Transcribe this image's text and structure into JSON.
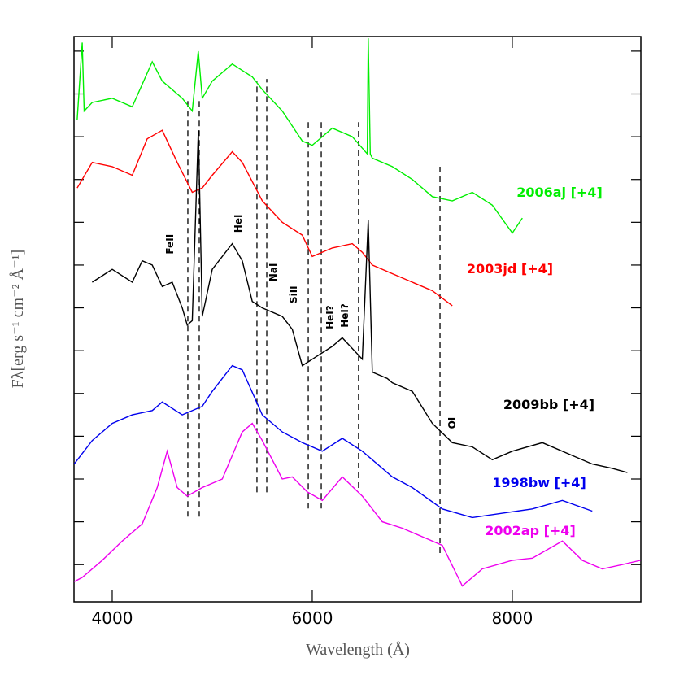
{
  "chart_data": {
    "type": "line",
    "xlabel": "Wavelength (Å)",
    "ylabel": "Fλ[erg s⁻¹ cm⁻² Å⁻¹]",
    "xlim": [
      3618,
      9285
    ],
    "ylim": [
      0.13,
      13.34
    ],
    "xticks": [
      4000,
      6000,
      8000
    ],
    "yticks": [
      1,
      2,
      3,
      4,
      5,
      6,
      7,
      8,
      9,
      10,
      11,
      12,
      13
    ],
    "series": [
      {
        "name": "2006aj [+4]",
        "color": "#00ee00",
        "x": [
          3650,
          3700,
          3720,
          3800,
          4000,
          4200,
          4400,
          4500,
          4700,
          4800,
          4860,
          4900,
          5000,
          5200,
          5400,
          5500,
          5700,
          5900,
          6000,
          6200,
          6400,
          6550,
          6560,
          6580,
          6600,
          6800,
          7000,
          7200,
          7400,
          7600,
          7800,
          8000,
          8100
        ],
        "values": [
          11.4,
          13.2,
          11.6,
          11.8,
          11.9,
          11.7,
          12.75,
          12.3,
          11.9,
          11.6,
          13.0,
          11.9,
          12.3,
          12.7,
          12.4,
          12.1,
          11.6,
          10.9,
          10.8,
          11.2,
          11.0,
          10.6,
          13.3,
          10.6,
          10.5,
          10.3,
          10.0,
          9.6,
          9.5,
          9.7,
          9.4,
          8.75,
          9.1
        ]
      },
      {
        "name": "2003jd [+4]",
        "color": "#ff0000",
        "x": [
          3650,
          3800,
          4000,
          4200,
          4350,
          4500,
          4650,
          4800,
          4900,
          5000,
          5200,
          5300,
          5500,
          5700,
          5900,
          6000,
          6200,
          6400,
          6500,
          6600,
          6800,
          7000,
          7200,
          7400
        ],
        "values": [
          9.8,
          10.4,
          10.3,
          10.1,
          10.95,
          11.15,
          10.4,
          9.7,
          9.8,
          10.1,
          10.65,
          10.4,
          9.5,
          9.0,
          8.7,
          8.2,
          8.4,
          8.5,
          8.3,
          8.0,
          7.8,
          7.6,
          7.4,
          7.05
        ]
      },
      {
        "name": "2009bb [+4]",
        "color": "#000000",
        "x": [
          3800,
          4000,
          4200,
          4300,
          4400,
          4500,
          4600,
          4700,
          4750,
          4800,
          4861,
          4900,
          5000,
          5200,
          5300,
          5400,
          5500,
          5700,
          5800,
          5900,
          6000,
          6200,
          6300,
          6500,
          6560,
          6600,
          6750,
          6800,
          7000,
          7200,
          7400,
          7600,
          7800,
          8000,
          8300,
          8600,
          8800,
          9000,
          9150
        ],
        "values": [
          7.6,
          7.9,
          7.6,
          8.1,
          8.0,
          7.5,
          7.6,
          7.0,
          6.6,
          6.7,
          11.15,
          6.8,
          7.9,
          8.5,
          8.1,
          7.15,
          7.0,
          6.8,
          6.5,
          5.65,
          5.8,
          6.1,
          6.3,
          5.8,
          9.05,
          5.5,
          5.35,
          5.25,
          5.05,
          4.3,
          3.85,
          3.75,
          3.45,
          3.65,
          3.85,
          3.55,
          3.35,
          3.25,
          3.15
        ]
      },
      {
        "name": "1998bw [+4]",
        "color": "#0000ee",
        "x": [
          3620,
          3800,
          4000,
          4200,
          4400,
          4500,
          4700,
          4900,
          5000,
          5200,
          5300,
          5500,
          5700,
          5900,
          6100,
          6300,
          6500,
          6800,
          7000,
          7300,
          7600,
          7900,
          8200,
          8500,
          8800
        ],
        "values": [
          3.35,
          3.9,
          4.3,
          4.5,
          4.6,
          4.8,
          4.5,
          4.7,
          5.05,
          5.65,
          5.55,
          4.5,
          4.1,
          3.85,
          3.65,
          3.95,
          3.65,
          3.05,
          2.8,
          2.3,
          2.1,
          2.2,
          2.3,
          2.5,
          2.25
        ]
      },
      {
        "name": "2002ap [+4]",
        "color": "#ee00ee",
        "x": [
          3620,
          3700,
          3900,
          4100,
          4300,
          4450,
          4550,
          4650,
          4750,
          4900,
          5100,
          5300,
          5400,
          5500,
          5700,
          5800,
          5950,
          6100,
          6300,
          6500,
          6700,
          6900,
          7100,
          7300,
          7500,
          7700,
          8000,
          8200,
          8500,
          8700,
          8900,
          9100,
          9280
        ],
        "values": [
          0.6,
          0.7,
          1.1,
          1.55,
          1.95,
          2.8,
          3.65,
          2.8,
          2.6,
          2.8,
          3.0,
          4.1,
          4.3,
          3.9,
          3.0,
          3.05,
          2.7,
          2.5,
          3.05,
          2.6,
          2.0,
          1.85,
          1.65,
          1.45,
          0.5,
          0.9,
          1.1,
          1.15,
          1.55,
          1.1,
          0.9,
          1.0,
          1.1
        ]
      }
    ],
    "lines": [
      {
        "x": 4756,
        "y": [
          2.12,
          11.91
        ]
      },
      {
        "x": 4870,
        "y": [
          2.12,
          11.91
        ]
      },
      {
        "x": 5447,
        "y": [
          2.69,
          12.29
        ]
      },
      {
        "x": 5545,
        "y": [
          2.69,
          12.35
        ]
      },
      {
        "x": 5960,
        "y": [
          2.31,
          11.34
        ]
      },
      {
        "x": 6090,
        "y": [
          2.31,
          11.34
        ]
      },
      {
        "x": 6463,
        "y": [
          2.79,
          11.34
        ]
      },
      {
        "x": 7277,
        "y": [
          1.27,
          10.39
        ]
      }
    ],
    "annotations": [
      {
        "text": "FeII",
        "x": 4610,
        "y": 8.49
      },
      {
        "text": "HeI",
        "x": 5293,
        "y": 8.97
      },
      {
        "text": "NaI",
        "x": 5642,
        "y": 7.83
      },
      {
        "text": "SiII",
        "x": 5846,
        "y": 7.31
      },
      {
        "text": "HeI?",
        "x": 6211,
        "y": 6.78
      },
      {
        "text": "HeI?",
        "x": 6358,
        "y": 6.82
      },
      {
        "text": "OI",
        "x": 7431,
        "y": 4.31
      }
    ]
  }
}
